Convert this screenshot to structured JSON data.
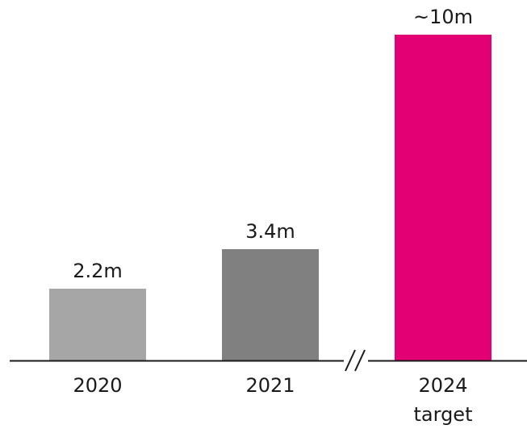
{
  "chart_data": {
    "type": "bar",
    "title": "",
    "xlabel": "",
    "ylabel": "",
    "categories": [
      "2020",
      "2021",
      "2024"
    ],
    "category_sublabels": [
      "",
      "",
      "target"
    ],
    "values": [
      2.2,
      3.4,
      10
    ],
    "value_labels": [
      "2.2m",
      "3.4m",
      "~10m"
    ],
    "colors": [
      "#a6a6a6",
      "#808080",
      "#e20074"
    ],
    "axis_break_between": [
      "2021",
      "2024"
    ],
    "ylim": [
      0,
      10
    ],
    "grid": false,
    "legend": "none"
  }
}
